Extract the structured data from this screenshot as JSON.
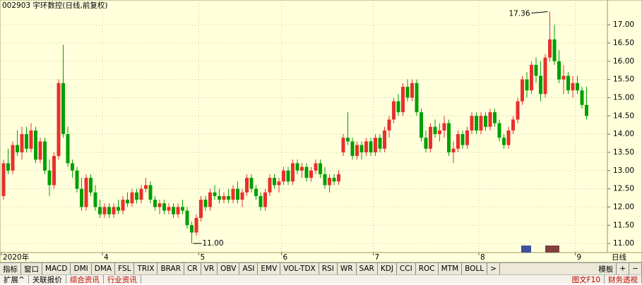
{
  "chart_data": {
    "type": "candlestick",
    "title": "002903 宇环数控(日线,前复权)",
    "up_color": "#e8302a",
    "down_color": "#00a000",
    "grid": true,
    "ylim": [
      10.75,
      17.68
    ],
    "yticks": [
      {
        "value": 11,
        "label": "11.00"
      },
      {
        "value": 11.5,
        "label": "11.50"
      },
      {
        "value": 12,
        "label": "12.00"
      },
      {
        "value": 12.5,
        "label": "12.50"
      },
      {
        "value": 13,
        "label": "13.00"
      },
      {
        "value": 13.5,
        "label": "13.50"
      },
      {
        "value": 14,
        "label": "14.00"
      },
      {
        "value": 14.5,
        "label": "14.50"
      },
      {
        "value": 15,
        "label": "15.00"
      },
      {
        "value": 15.5,
        "label": "15.50"
      },
      {
        "value": 16,
        "label": "16.00"
      },
      {
        "value": 16.5,
        "label": "16.50"
      },
      {
        "value": 17,
        "label": "17.00"
      }
    ],
    "categories": [
      "2020年",
      null,
      null,
      null,
      null,
      null,
      null,
      null,
      null,
      null,
      null,
      null,
      null,
      null,
      null,
      null,
      null,
      null,
      null,
      null,
      null,
      null,
      "4",
      null,
      null,
      null,
      null,
      null,
      null,
      null,
      null,
      null,
      null,
      null,
      null,
      null,
      null,
      null,
      null,
      null,
      null,
      null,
      null,
      "5",
      null,
      null,
      null,
      null,
      null,
      null,
      null,
      null,
      null,
      null,
      null,
      null,
      null,
      null,
      null,
      null,
      null,
      "6",
      null,
      null,
      null,
      null,
      null,
      null,
      null,
      null,
      null,
      null,
      null,
      null,
      null,
      null,
      null,
      null,
      null,
      null,
      null,
      "7",
      null,
      null,
      null,
      null,
      null,
      null,
      null,
      null,
      null,
      null,
      null,
      null,
      null,
      null,
      null,
      null,
      null,
      null,
      null,
      null,
      null,
      null,
      "8",
      null,
      null,
      null,
      null,
      null,
      null,
      null,
      null,
      null,
      null,
      null,
      null,
      null,
      null,
      null,
      null,
      null,
      null,
      null,
      null,
      "9",
      null,
      null
    ],
    "open": [
      12.3,
      13.2,
      13.0,
      13.7,
      13.5,
      14.0,
      13.6,
      14.1,
      13.3,
      13.8,
      13.0,
      12.6,
      13.4,
      15.4,
      14.0,
      13.2,
      13.0,
      12.5,
      12.0,
      12.8,
      12.4,
      12.0,
      11.8,
      12.0,
      11.8,
      12.0,
      11.9,
      12.2,
      12.1,
      12.4,
      12.2,
      12.5,
      12.6,
      12.2,
      12.0,
      12.1,
      11.9,
      12.0,
      11.8,
      12.0,
      11.9,
      11.5,
      11.3,
      11.7,
      12.2,
      12.0,
      12.4,
      12.3,
      12.2,
      12.3,
      12.2,
      12.5,
      12.2,
      12.4,
      12.8,
      12.5,
      12.3,
      12.0,
      12.4,
      12.8,
      12.6,
      12.7,
      13.0,
      12.7,
      13.2,
      13.0,
      13.1,
      12.8,
      13.0,
      13.2,
      12.9,
      12.6,
      12.8,
      12.7,
      13.5,
      13.9,
      13.8,
      13.4,
      13.7,
      13.5,
      13.8,
      13.5,
      13.9,
      13.6,
      14.1,
      14.4,
      14.9,
      14.6,
      15.3,
      15.0,
      15.4,
      14.6,
      13.9,
      13.6,
      14.2,
      14.0,
      14.1,
      14.3,
      13.5,
      13.6,
      14.0,
      13.7,
      14.1,
      14.5,
      14.1,
      14.5,
      14.2,
      14.6,
      14.3,
      13.9,
      13.7,
      14.1,
      14.4,
      14.9,
      15.5,
      15.2,
      15.9,
      15.6,
      15.1,
      16.1,
      16.6,
      16.0,
      15.5,
      15.6,
      15.2,
      15.4,
      15.2,
      14.8
    ],
    "high": [
      13.3,
      13.6,
      13.8,
      14.1,
      14.2,
      14.2,
      14.3,
      14.2,
      13.9,
      13.9,
      13.3,
      13.5,
      15.5,
      16.45,
      14.2,
      13.3,
      13.1,
      12.8,
      12.9,
      12.9,
      12.6,
      12.2,
      12.1,
      12.1,
      12.1,
      12.2,
      12.3,
      12.4,
      12.5,
      12.5,
      12.6,
      12.8,
      12.7,
      12.3,
      12.2,
      12.2,
      12.1,
      12.1,
      12.1,
      12.2,
      12.0,
      11.6,
      11.8,
      12.3,
      12.3,
      12.5,
      12.6,
      12.5,
      12.4,
      12.5,
      12.6,
      12.7,
      12.5,
      12.9,
      12.9,
      12.6,
      12.4,
      12.5,
      12.9,
      12.9,
      12.8,
      13.1,
      13.1,
      13.3,
      13.3,
      13.2,
      13.2,
      13.1,
      13.3,
      13.3,
      13.1,
      12.9,
      12.9,
      13.0,
      14.0,
      14.6,
      13.9,
      13.8,
      13.8,
      13.9,
      13.9,
      14.0,
      14.0,
      14.2,
      14.5,
      15.0,
      15.1,
      15.4,
      15.5,
      15.5,
      15.5,
      14.7,
      14.1,
      14.3,
      14.4,
      14.3,
      14.5,
      14.4,
      13.8,
      14.1,
      14.1,
      14.2,
      14.6,
      14.6,
      14.6,
      14.6,
      14.7,
      14.7,
      14.4,
      14.0,
      14.2,
      14.5,
      15.0,
      15.6,
      15.7,
      16.0,
      16.1,
      16.0,
      16.2,
      17.36,
      17.0,
      16.3,
      15.9,
      15.7,
      15.6,
      15.6,
      15.3,
      15.3
    ],
    "low": [
      12.2,
      12.9,
      12.9,
      13.4,
      13.3,
      13.5,
      13.5,
      13.2,
      13.2,
      12.9,
      12.3,
      12.5,
      13.3,
      13.9,
      13.1,
      12.8,
      12.4,
      11.9,
      11.9,
      12.3,
      11.9,
      11.7,
      11.7,
      11.7,
      11.7,
      11.8,
      11.8,
      12.0,
      12.0,
      12.1,
      12.1,
      12.4,
      12.1,
      11.9,
      11.8,
      11.8,
      11.8,
      11.7,
      11.7,
      11.8,
      11.4,
      11.0,
      11.2,
      11.6,
      11.9,
      11.9,
      12.2,
      12.1,
      12.1,
      12.1,
      12.1,
      12.1,
      12.0,
      12.3,
      12.4,
      12.2,
      11.9,
      11.9,
      12.3,
      12.5,
      12.4,
      12.6,
      12.6,
      12.6,
      12.9,
      12.8,
      12.7,
      12.7,
      12.9,
      12.8,
      12.5,
      12.4,
      12.6,
      12.6,
      13.4,
      13.7,
      13.3,
      13.3,
      13.3,
      13.4,
      13.4,
      13.4,
      13.5,
      13.5,
      13.9,
      14.3,
      14.5,
      14.5,
      14.9,
      14.9,
      14.5,
      13.8,
      13.5,
      13.5,
      13.9,
      13.8,
      13.9,
      13.4,
      13.2,
      13.5,
      13.6,
      13.6,
      14.0,
      14.0,
      14.0,
      14.1,
      14.1,
      14.2,
      13.8,
      13.6,
      13.6,
      14.0,
      14.3,
      14.8,
      15.0,
      15.1,
      15.4,
      14.9,
      15.0,
      16.0,
      15.9,
      15.4,
      15.1,
      15.1,
      15.0,
      15.1,
      14.7,
      14.4
    ],
    "close": [
      13.2,
      13.0,
      13.7,
      13.5,
      14.0,
      13.6,
      14.1,
      13.3,
      13.8,
      13.0,
      12.6,
      13.4,
      15.4,
      14.0,
      13.2,
      13.0,
      12.5,
      12.0,
      12.8,
      12.4,
      12.0,
      11.8,
      12.0,
      11.8,
      12.0,
      11.9,
      12.2,
      12.1,
      12.4,
      12.2,
      12.5,
      12.6,
      12.2,
      12.0,
      12.1,
      11.9,
      12.0,
      11.8,
      12.0,
      11.9,
      11.5,
      11.3,
      11.7,
      12.2,
      12.0,
      12.4,
      12.3,
      12.2,
      12.3,
      12.2,
      12.5,
      12.2,
      12.4,
      12.8,
      12.5,
      12.3,
      12.0,
      12.4,
      12.8,
      12.6,
      12.7,
      13.0,
      12.7,
      13.2,
      13.0,
      13.1,
      12.8,
      13.0,
      13.2,
      12.9,
      12.6,
      12.8,
      12.7,
      12.9,
      13.9,
      13.8,
      13.4,
      13.7,
      13.5,
      13.8,
      13.5,
      13.9,
      13.6,
      14.1,
      14.4,
      14.9,
      14.6,
      15.3,
      15.0,
      15.4,
      14.6,
      13.9,
      13.6,
      14.2,
      14.0,
      14.1,
      14.3,
      13.5,
      13.6,
      14.0,
      13.7,
      14.1,
      14.5,
      14.1,
      14.5,
      14.2,
      14.6,
      14.3,
      13.9,
      13.7,
      14.1,
      14.4,
      14.9,
      15.5,
      15.2,
      15.9,
      15.6,
      15.1,
      16.1,
      16.6,
      16.0,
      15.5,
      15.6,
      15.2,
      15.4,
      15.2,
      14.8,
      14.5
    ],
    "annotations": [
      {
        "label": "17.36",
        "value": 17.36
      },
      {
        "label": "11.00",
        "value": 11
      }
    ]
  },
  "toolbar": {
    "period": "日线",
    "items": [
      "指标",
      "窗口",
      "MACD",
      "DMI",
      "DMA",
      "FSL",
      "TRIX",
      "BRAR",
      "CR",
      "VR",
      "OBV",
      "ASI",
      "EMV",
      "VOL-TDX",
      "RSI",
      "WR",
      "SAR",
      "KDJ",
      "CCI",
      "ROC",
      "MTM",
      "BOLL",
      ">",
      "模板",
      "+",
      "−"
    ],
    "tabs": [
      "扩展^",
      "关联报价",
      "综合资讯",
      "行业资讯"
    ],
    "right_tabs": [
      "图文F10",
      "财务透视"
    ]
  }
}
